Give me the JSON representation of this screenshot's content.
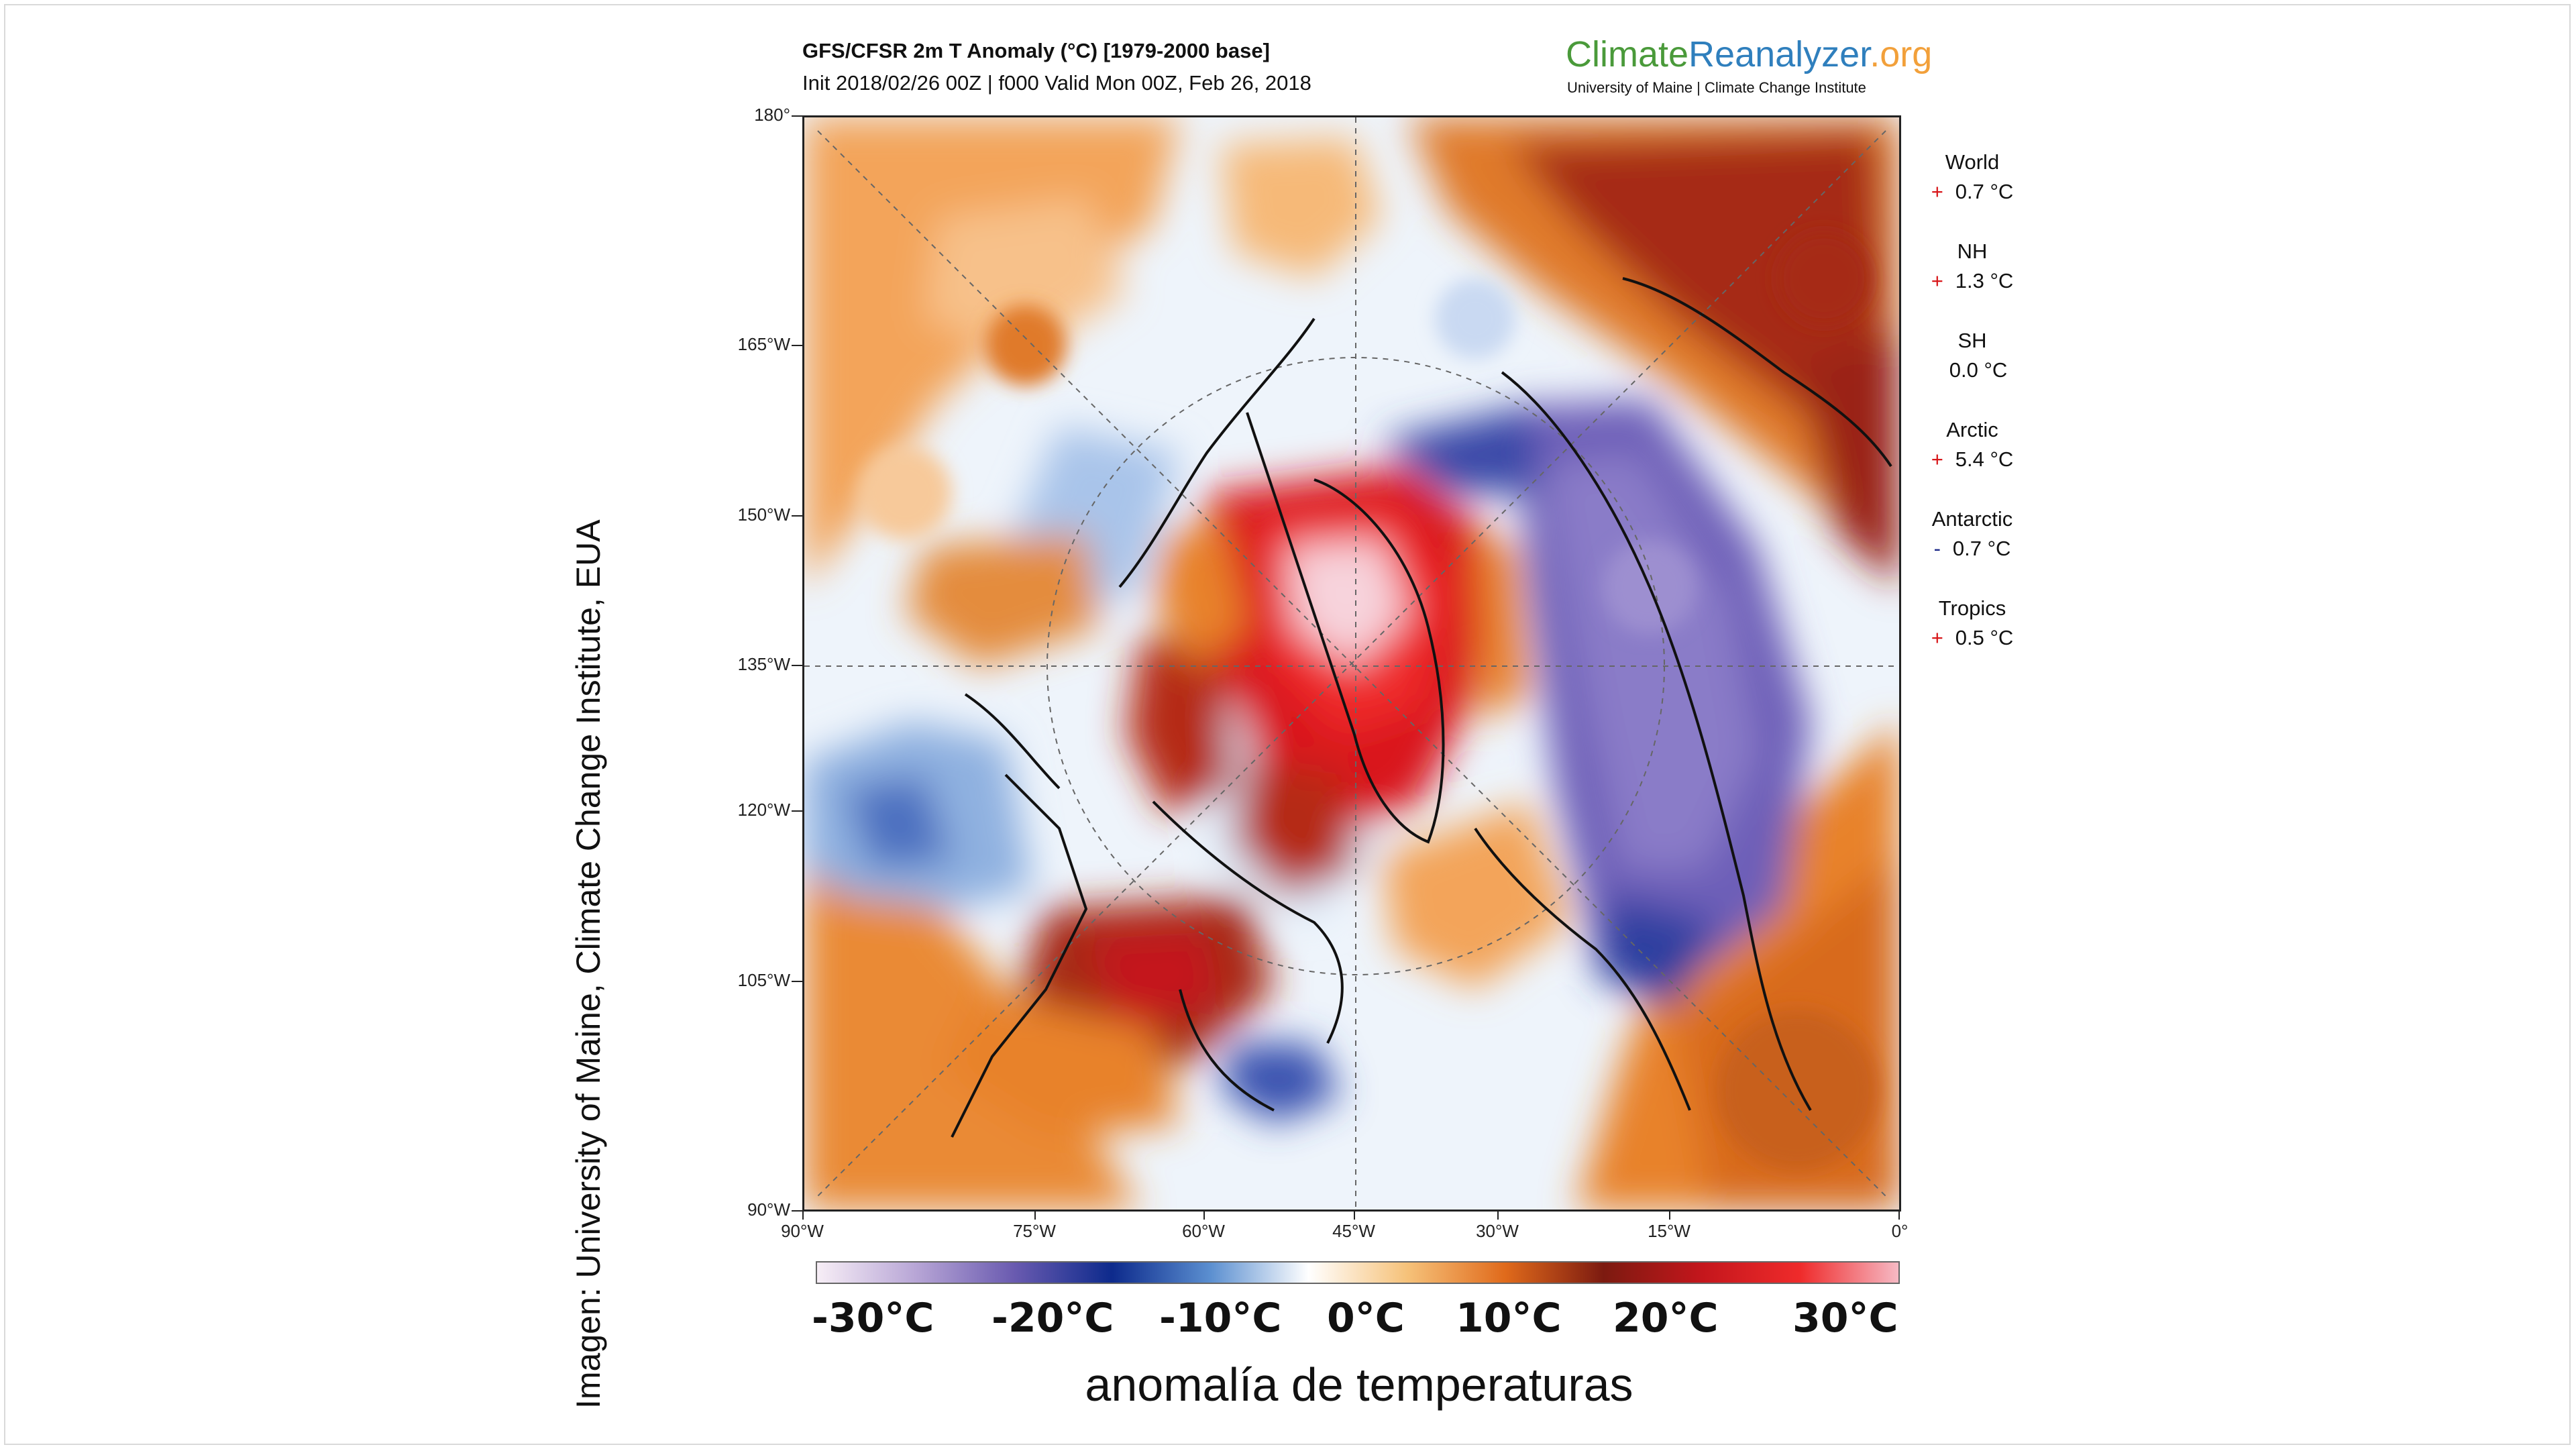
{
  "credit": "Imagen: University of Maine, Climate Change Institute, EUA",
  "map_header": {
    "title": "GFS/CFSR 2m T Anomaly (°C) [1979-2000 base]",
    "subtitle": "Init 2018/02/26 00Z | f000 Valid Mon 00Z, Feb 26, 2018"
  },
  "brand": {
    "part1": "Climate",
    "part2": "Reanalyzer",
    "part3": ".org",
    "sub": "University of Maine | Climate Change Institute",
    "colors": {
      "green": "#4a9a3a",
      "blue": "#2f7fbd",
      "orange": "#f2a03a"
    }
  },
  "latitude_labels": [
    "180°",
    "165°W",
    "150°W",
    "135°W",
    "120°W",
    "105°W",
    "90°W"
  ],
  "longitude_labels": [
    "90°W",
    "75°W",
    "60°W",
    "45°W",
    "30°W",
    "15°W",
    "0°"
  ],
  "stats": [
    {
      "region": "World",
      "sign": "+",
      "value": "0.7 °C"
    },
    {
      "region": "NH",
      "sign": "+",
      "value": "1.3 °C"
    },
    {
      "region": "SH",
      "sign": "",
      "value": "0.0 °C"
    },
    {
      "region": "Arctic",
      "sign": "+",
      "value": "5.4 °C"
    },
    {
      "region": "Antarctic",
      "sign": "-",
      "value": "0.7 °C"
    },
    {
      "region": "Tropics",
      "sign": "+",
      "value": "0.5 °C"
    }
  ],
  "colorbar": {
    "labels": [
      "-30°C",
      "-20°C",
      "-10°C",
      "0°C",
      "10°C",
      "20°C",
      "30°C"
    ],
    "stops": [
      "#f7eef6",
      "#b8a6d6",
      "#6a5bb0",
      "#0d2a8c",
      "#5b8fd0",
      "#ffffff",
      "#f6c27a",
      "#e06a1b",
      "#7c1a10",
      "#c4161c",
      "#ef2b2b",
      "#f6b9c4"
    ],
    "caption": "anomalía de temperaturas"
  },
  "map_colors": {
    "warm": "#e8822a",
    "very_warm": "#a62a14",
    "hot": "#d9151c",
    "extreme": "#f7d3dc",
    "cold": "#2d3fa0",
    "very_cold": "#6d5fb8",
    "neutral": "#eef4fb",
    "coast": "#111111"
  }
}
